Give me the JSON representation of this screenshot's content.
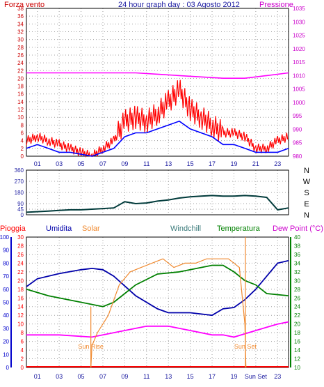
{
  "header": {
    "title": "24 hour graph day : 03 Agosto 2012",
    "left_label": "Forza vento",
    "right_label": "Pressione"
  },
  "colors": {
    "wind": "#ff0000",
    "wind_avg": "#0000ff",
    "pressure": "#ff00ff",
    "direction": "#003a3a",
    "rain": "#ff0000",
    "humidity": "#0000aa",
    "solar": "#f08a30",
    "windchill": "#3a7a7a",
    "temperature": "#008000",
    "dewpoint": "#ff00ff",
    "axis_text_left": "#cc0000",
    "axis_text_right": "#cc00cc",
    "grid": "#a0a0a0",
    "frame": "#000000"
  },
  "x_ticks": [
    "01",
    "03",
    "05",
    "07",
    "09",
    "11",
    "13",
    "15",
    "17",
    "19",
    "21",
    "23"
  ],
  "chart_data": [
    {
      "type": "line",
      "name": "wind-pressure",
      "left_axis": {
        "label": "Forza vento",
        "ticks": [
          0,
          2,
          4,
          6,
          8,
          10,
          12,
          14,
          16,
          18,
          20,
          22,
          24,
          26,
          28,
          30,
          32,
          34,
          36,
          38
        ],
        "lim": [
          0,
          38
        ]
      },
      "right_axis": {
        "label": "Pressione",
        "ticks": [
          980,
          985,
          990,
          995,
          1000,
          1005,
          1010,
          1015,
          1020,
          1025,
          1030,
          1035
        ],
        "lim": [
          980,
          1035
        ]
      },
      "x_ticks": [
        "01",
        "03",
        "05",
        "07",
        "09",
        "11",
        "13",
        "15",
        "17",
        "19",
        "21",
        "23"
      ],
      "series": [
        {
          "name": "Forza vento",
          "key": "gust",
          "x": [
            0,
            1,
            2,
            3,
            4,
            5,
            6,
            7,
            8,
            9,
            10,
            11,
            12,
            13,
            14,
            15,
            16,
            17,
            18,
            19,
            20,
            21,
            22,
            23,
            24
          ],
          "y": [
            4,
            5,
            4,
            3,
            2,
            1,
            0,
            2,
            4,
            9,
            10,
            9,
            11,
            14,
            17,
            12,
            10,
            8,
            6,
            6,
            5,
            2,
            2,
            4,
            5
          ]
        },
        {
          "name": "",
          "key": "avg",
          "x": [
            0,
            1,
            2,
            3,
            4,
            5,
            6,
            7,
            8,
            9,
            10,
            11,
            12,
            13,
            14,
            15,
            16,
            17,
            18,
            19,
            20,
            21,
            22,
            23,
            24
          ],
          "y": [
            2,
            3,
            2,
            1,
            1,
            0.5,
            0,
            1,
            2,
            5,
            6,
            6,
            7,
            8,
            9,
            7,
            6,
            5,
            3,
            3,
            2,
            1,
            1,
            1,
            2
          ]
        },
        {
          "name": "Pressione",
          "key": "pressure",
          "x": [
            0,
            2,
            4,
            6,
            8,
            10,
            12,
            14,
            16,
            18,
            20,
            22,
            24
          ],
          "y": [
            1011,
            1011,
            1011,
            1011,
            1011,
            1011,
            1010.5,
            1010,
            1009.5,
            1009,
            1009,
            1010,
            1011
          ]
        }
      ]
    },
    {
      "type": "line",
      "name": "wind-direction",
      "left_axis": {
        "ticks": [
          0,
          45,
          90,
          180,
          270,
          360
        ],
        "lim": [
          0,
          360
        ]
      },
      "right_axis": {
        "ticks": [
          "N",
          "W",
          "S",
          "E",
          "N"
        ]
      },
      "x_ticks": [
        "01",
        "03",
        "05",
        "07",
        "09",
        "11",
        "13",
        "15",
        "17",
        "19",
        "21",
        "23"
      ],
      "series": [
        {
          "name": "",
          "x": [
            0,
            2,
            3,
            4,
            5,
            6,
            7,
            8,
            9,
            10,
            11,
            12,
            13,
            14,
            15,
            16,
            17,
            18,
            19,
            20,
            21,
            22,
            23,
            24
          ],
          "y": [
            20,
            30,
            35,
            40,
            40,
            45,
            50,
            55,
            105,
            90,
            95,
            110,
            120,
            135,
            145,
            150,
            155,
            150,
            150,
            155,
            150,
            140,
            40,
            55
          ]
        }
      ]
    },
    {
      "type": "line",
      "name": "temperature-humidity",
      "legend": [
        "Pioggia",
        "Umidita",
        "Solar",
        "Windchill",
        "Temperatura",
        "Dew Point (°C)"
      ],
      "axes": {
        "umidita": {
          "ticks": [
            0,
            10,
            20,
            30,
            40,
            50,
            60,
            70,
            80,
            90,
            100
          ],
          "lim": [
            0,
            100
          ]
        },
        "pioggia": {
          "ticks": [
            0,
            2,
            4,
            6,
            8,
            10,
            12,
            14,
            16,
            18,
            20,
            22,
            24,
            26,
            28,
            30
          ],
          "lim": [
            0,
            30
          ]
        },
        "temperatura": {
          "ticks": [
            10,
            12,
            14,
            16,
            18,
            20,
            22,
            24,
            26,
            28,
            30,
            32,
            34,
            36,
            38,
            40
          ],
          "lim": [
            10,
            40
          ]
        }
      },
      "x_ticks": [
        "01",
        "03",
        "05",
        "07",
        "09",
        "11",
        "13",
        "15",
        "17",
        "19",
        "Sun Set",
        "23"
      ],
      "annotations": [
        "Sun Rise",
        "Sun Set"
      ],
      "series": [
        {
          "name": "Umidita",
          "key": "humidity",
          "x": [
            0,
            1,
            3,
            5,
            6,
            7,
            8,
            10,
            12,
            13,
            15,
            17,
            18,
            19,
            20,
            21,
            22,
            23,
            24
          ],
          "y": [
            62,
            68,
            72,
            75,
            76,
            75,
            70,
            55,
            45,
            42,
            42,
            40,
            45,
            46,
            52,
            60,
            70,
            80,
            82
          ]
        },
        {
          "name": "Temperatura",
          "key": "temperature",
          "x": [
            0,
            2,
            4,
            6,
            7,
            8,
            9,
            10,
            12,
            14,
            15,
            17,
            18,
            19,
            20,
            21,
            22,
            24
          ],
          "y": [
            28,
            26.5,
            25.5,
            24.5,
            24,
            25,
            27,
            29,
            31.5,
            32,
            32.5,
            33.5,
            33.5,
            32,
            30,
            29,
            27,
            26.5
          ]
        },
        {
          "name": "Dew Point (°C)",
          "key": "dewpoint",
          "x": [
            0,
            3,
            6,
            7,
            9,
            11,
            13,
            15,
            17,
            18,
            19,
            21,
            23,
            24
          ],
          "y": [
            17.5,
            17.5,
            17,
            17.5,
            18.5,
            19.5,
            19.5,
            18.5,
            17.5,
            17.5,
            17,
            18.5,
            20,
            20.5
          ]
        },
        {
          "name": "Solar",
          "key": "solar",
          "x": [
            5.9,
            6.0,
            6.5,
            7.5,
            8.5,
            9.5,
            10.5,
            11.5,
            12.5,
            13.5,
            14.5,
            15.5,
            16.5,
            17.5,
            18.5,
            19.5,
            20.0,
            20.1
          ],
          "y": [
            0,
            5,
            8,
            12,
            19,
            22,
            23,
            24,
            25,
            23,
            24,
            24,
            25,
            25,
            25,
            23,
            10,
            0
          ]
        }
      ]
    }
  ]
}
